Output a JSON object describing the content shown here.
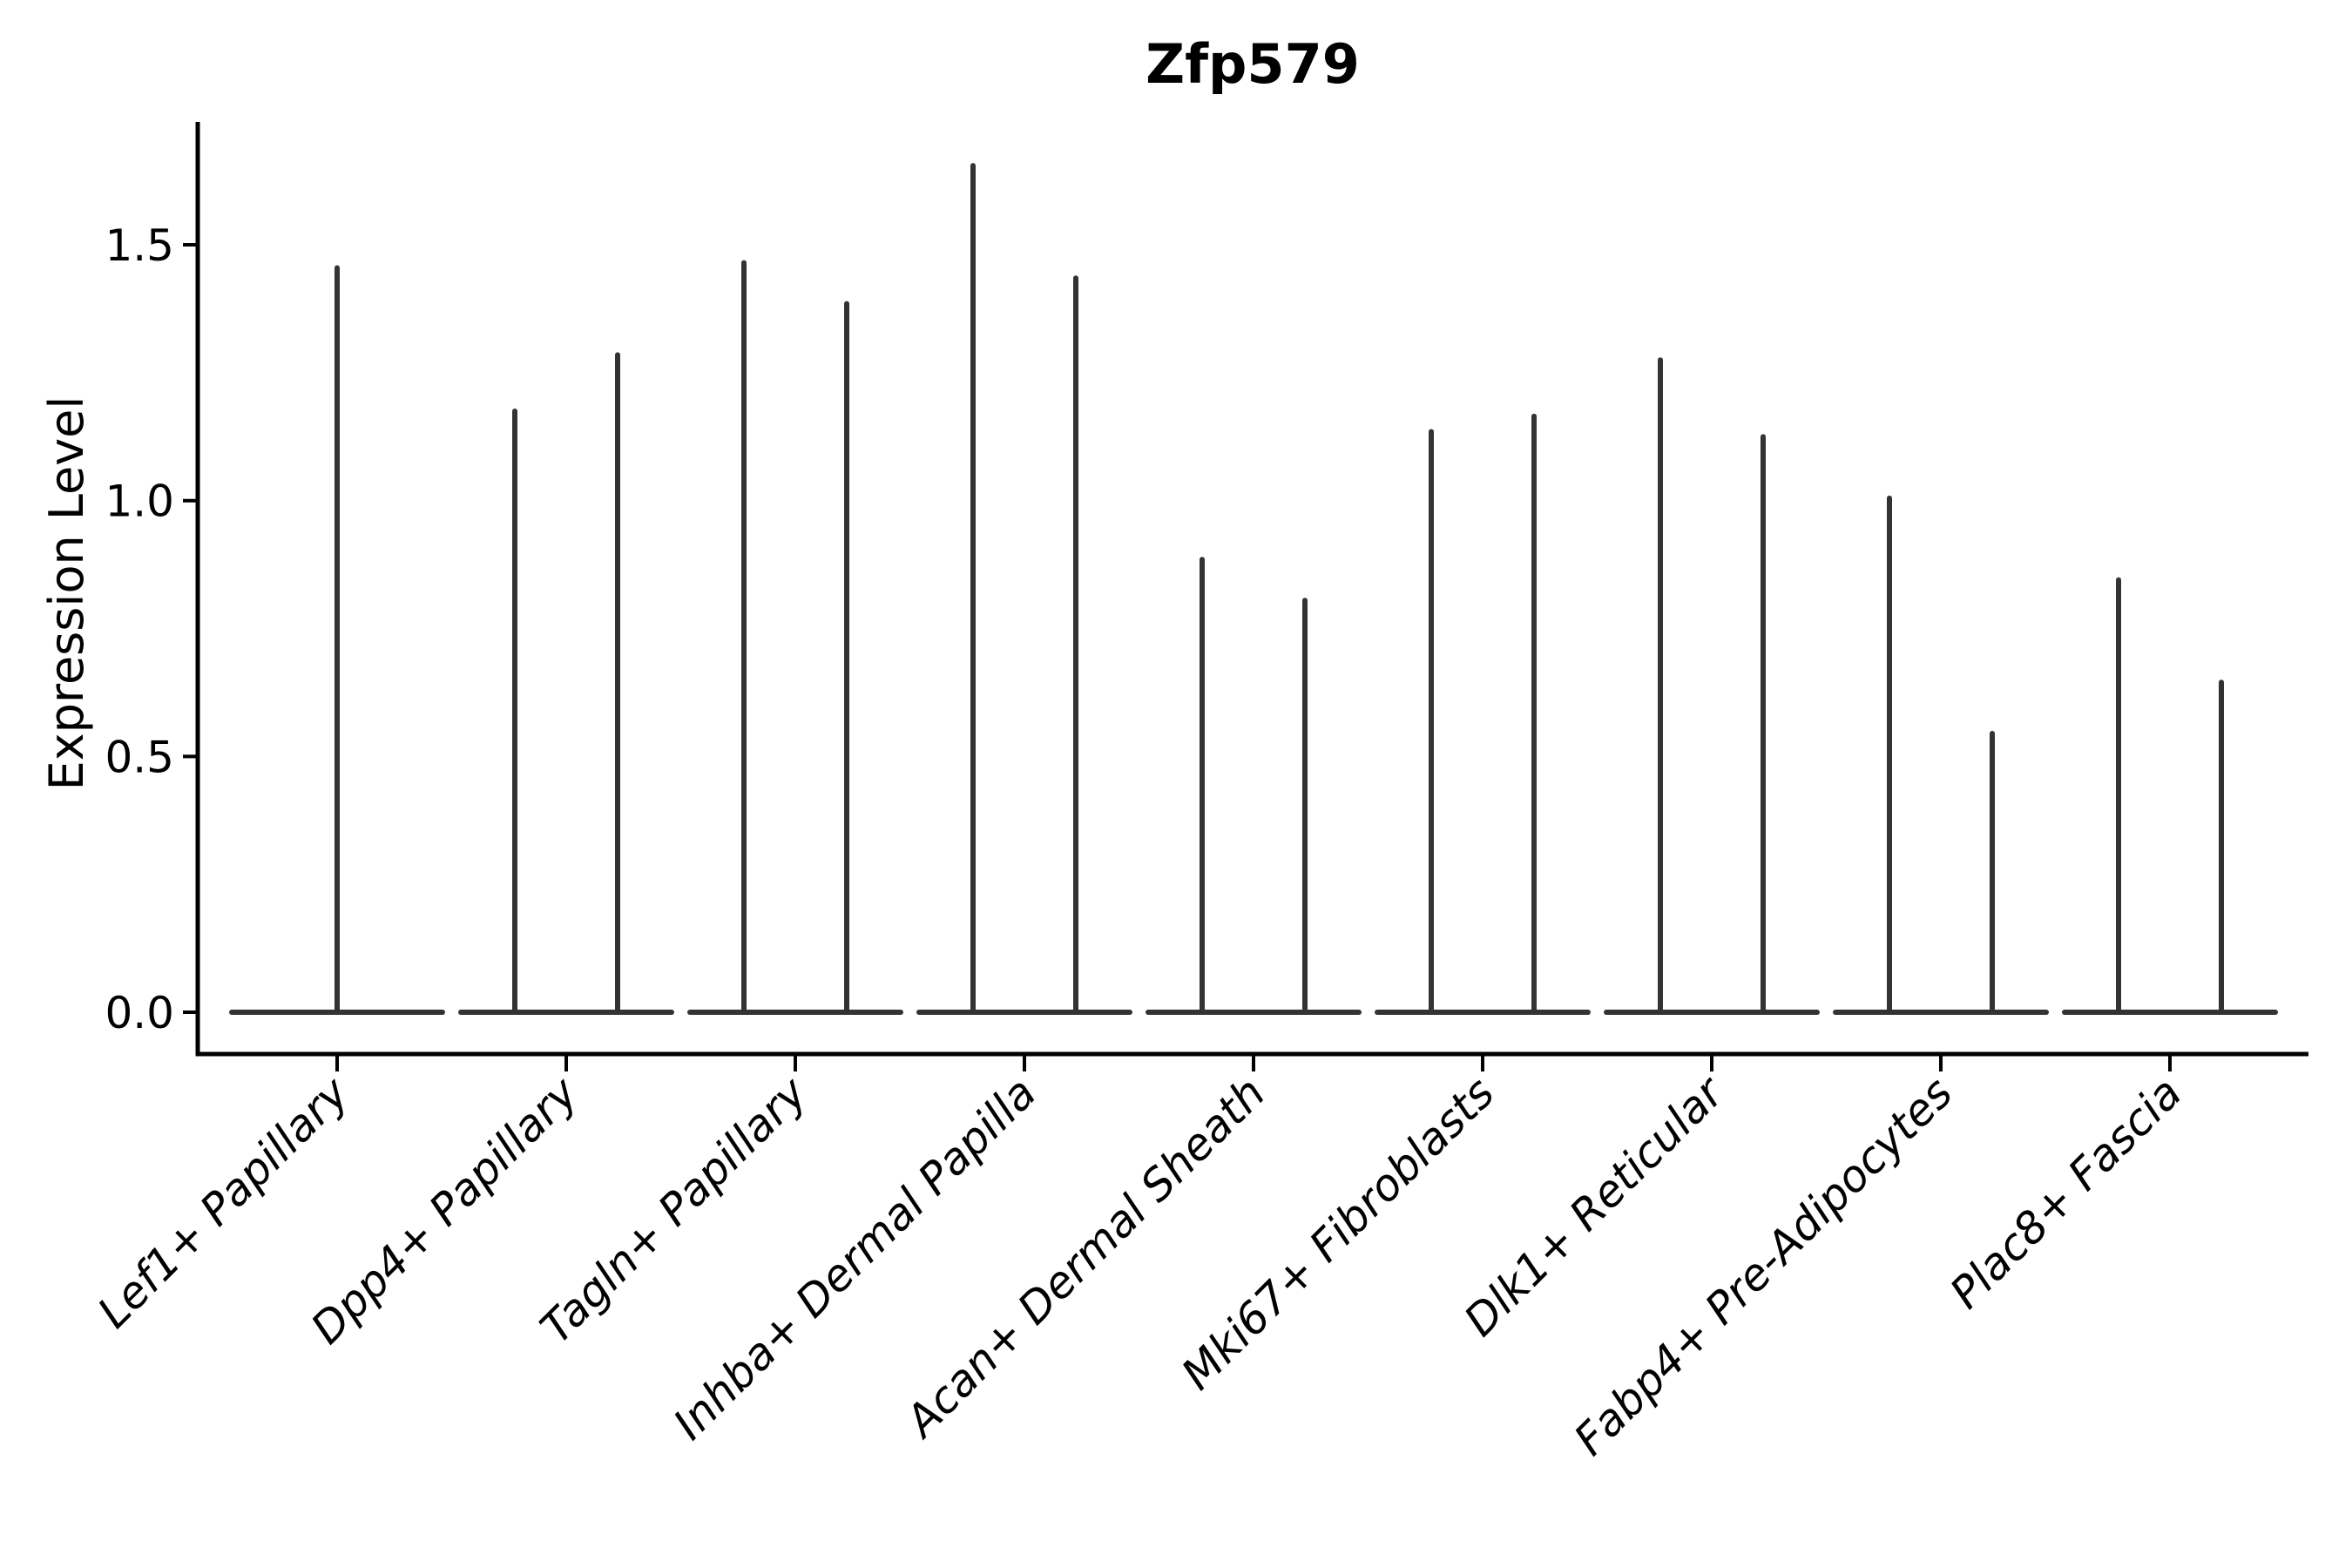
{
  "title": "Zfp579",
  "y_axis": {
    "label": "Expression Level",
    "tick_labels": [
      "0.0",
      "0.5",
      "1.0",
      "1.5"
    ]
  },
  "chart_data": {
    "type": "violin",
    "title": "Zfp579",
    "xlabel": "",
    "ylabel": "Expression Level",
    "ylim": [
      -0.08,
      1.74
    ],
    "grid": false,
    "legend": "none",
    "violin_color": "#333333",
    "axis_color": "#000000",
    "ytick_values": [
      0.0,
      0.5,
      1.0,
      1.5
    ],
    "ytick_labels": [
      "0.0",
      "0.5",
      "1.0",
      "1.5"
    ],
    "categories": [
      "Lef1+ Papillary",
      "Dpp4+ Papillary",
      "Tagln+ Papillary",
      "Inhba+ Dermal Papilla",
      "Acan+ Dermal Sheath",
      "Mki67+ Fibroblasts",
      "Dlk1+ Reticular",
      "Fabp4+ Pre-Adipocytes",
      "Plac8+ Fascia"
    ],
    "violins": [
      {
        "category": "Lef1+ Papillary",
        "density_base_value": 0.0,
        "spike_max_values": [
          1.46
        ]
      },
      {
        "category": "Dpp4+ Papillary",
        "density_base_value": 0.0,
        "spike_max_values": [
          1.18,
          1.29
        ]
      },
      {
        "category": "Tagln+ Papillary",
        "density_base_value": 0.0,
        "spike_max_values": [
          1.47,
          1.39
        ]
      },
      {
        "category": "Inhba+ Dermal Papilla",
        "density_base_value": 0.0,
        "spike_max_values": [
          1.66,
          1.44
        ]
      },
      {
        "category": "Acan+ Dermal Sheath",
        "density_base_value": 0.0,
        "spike_max_values": [
          0.89,
          0.81
        ]
      },
      {
        "category": "Mki67+ Fibroblasts",
        "density_base_value": 0.0,
        "spike_max_values": [
          1.14,
          1.17
        ]
      },
      {
        "category": "Dlk1+ Reticular",
        "density_base_value": 0.0,
        "spike_max_values": [
          1.28,
          1.13
        ]
      },
      {
        "category": "Fabp4+ Pre-Adipocytes",
        "density_base_value": 0.0,
        "spike_max_values": [
          1.01,
          0.55
        ]
      },
      {
        "category": "Plac8+ Fascia",
        "density_base_value": 0.0,
        "spike_max_values": [
          0.85,
          0.65
        ]
      }
    ]
  }
}
